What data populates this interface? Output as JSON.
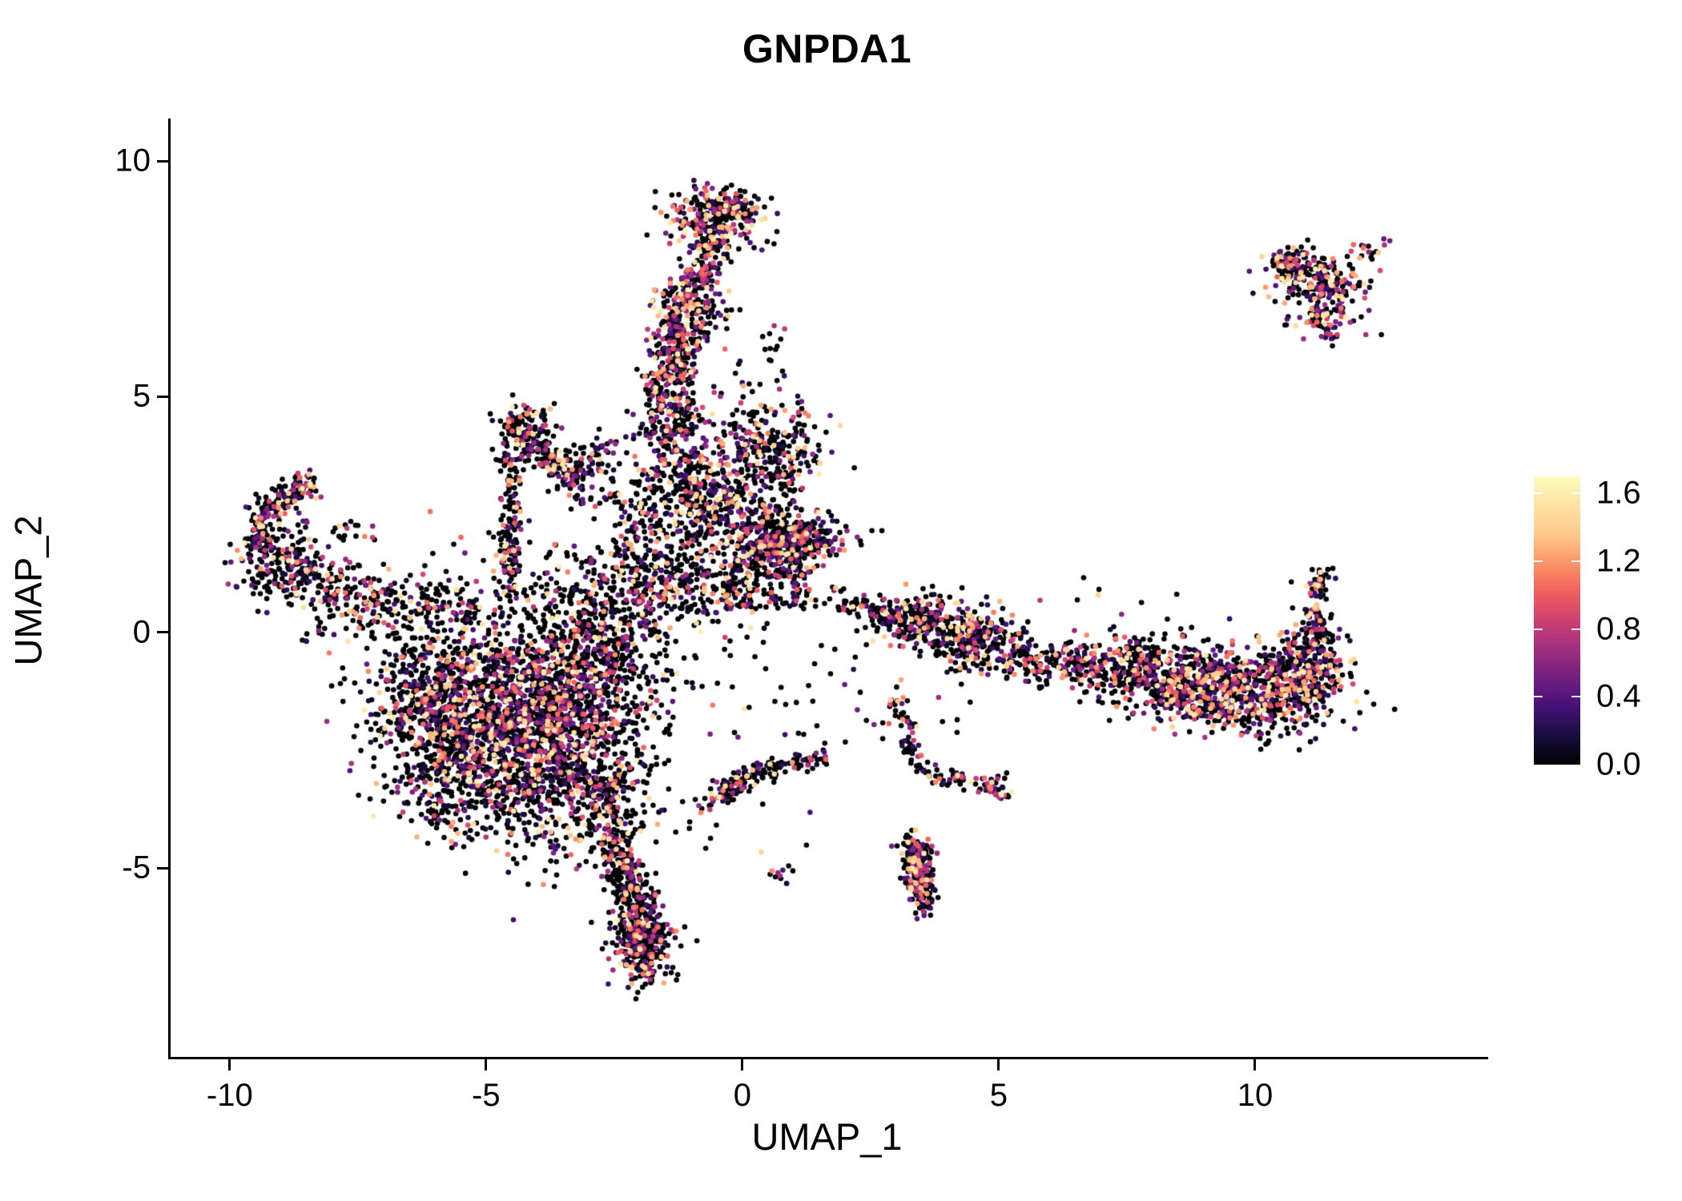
{
  "chart_data": {
    "type": "scatter",
    "title": "GNPDA1",
    "xlabel": "UMAP_1",
    "ylabel": "UMAP_2",
    "xlim": [
      -11.2,
      14.5
    ],
    "ylim": [
      -9.0,
      10.9
    ],
    "grid": false,
    "x_axis": {
      "label": "UMAP_1",
      "ticks": [
        {
          "v": -10,
          "label": "-10"
        },
        {
          "v": -5,
          "label": "-5"
        },
        {
          "v": 0,
          "label": "0"
        },
        {
          "v": 5,
          "label": "5"
        },
        {
          "v": 10,
          "label": "10"
        }
      ]
    },
    "y_axis": {
      "label": "UMAP_2",
      "ticks": [
        {
          "v": -5,
          "label": "-5"
        },
        {
          "v": 0,
          "label": "0"
        },
        {
          "v": 5,
          "label": "5"
        },
        {
          "v": 10,
          "label": "10"
        }
      ]
    },
    "legend": {
      "position": "right",
      "vmax": 1.7,
      "ticks": [
        {
          "v": 1.6,
          "label": "1.6"
        },
        {
          "v": 1.2,
          "label": "1.2"
        },
        {
          "v": 0.8,
          "label": "0.8"
        },
        {
          "v": 0.4,
          "label": "0.4"
        },
        {
          "v": 0.0,
          "label": "0.0"
        }
      ]
    },
    "colormap": [
      {
        "t": 0.0,
        "color": "#000004"
      },
      {
        "t": 0.1,
        "color": "#180f3e"
      },
      {
        "t": 0.2,
        "color": "#451077"
      },
      {
        "t": 0.3,
        "color": "#721f81"
      },
      {
        "t": 0.4,
        "color": "#9f2f7f"
      },
      {
        "t": 0.5,
        "color": "#cd4071"
      },
      {
        "t": 0.6,
        "color": "#f1605d"
      },
      {
        "t": 0.7,
        "color": "#fd9567"
      },
      {
        "t": 0.8,
        "color": "#feca8d"
      },
      {
        "t": 0.9,
        "color": "#fde2a3"
      },
      {
        "t": 1.0,
        "color": "#fcfdbf"
      }
    ],
    "point_radius_px": 3.3,
    "render_seed": 20240613,
    "value_base": 0.12,
    "value_span": 1.5,
    "clusters": [
      {
        "type": "gauss",
        "c": [
          -4.9,
          -1.5
        ],
        "sd": [
          1.05,
          0.95
        ],
        "n": 1150,
        "pos": 0.38
      },
      {
        "type": "gauss",
        "c": [
          -3.7,
          -2.7
        ],
        "sd": [
          0.85,
          0.95
        ],
        "n": 850,
        "pos": 0.38
      },
      {
        "type": "gauss",
        "c": [
          -3.1,
          -0.9
        ],
        "sd": [
          0.75,
          0.8
        ],
        "n": 480,
        "pos": 0.35
      },
      {
        "type": "gauss",
        "c": [
          -5.6,
          -3.0
        ],
        "sd": [
          0.6,
          0.75
        ],
        "n": 320,
        "pos": 0.35
      },
      {
        "type": "gauss",
        "c": [
          -2.9,
          0.2
        ],
        "sd": [
          0.5,
          0.55
        ],
        "n": 170,
        "pos": 0.3
      },
      {
        "type": "gauss",
        "c": [
          -6.3,
          -1.2
        ],
        "sd": [
          0.55,
          0.8
        ],
        "n": 220,
        "pos": 0.35
      },
      {
        "type": "gauss",
        "c": [
          -2.6,
          -3.6
        ],
        "sd": [
          0.4,
          0.5
        ],
        "n": 160,
        "pos": 0.35
      },
      {
        "type": "line",
        "a": [
          -2.55,
          -4.4
        ],
        "b": [
          -2.0,
          -5.9
        ],
        "n": 220,
        "j": 0.18,
        "pos": 0.3
      },
      {
        "type": "gauss",
        "c": [
          -1.95,
          -6.6
        ],
        "sd": [
          0.3,
          0.45
        ],
        "n": 260,
        "pos": 0.35
      },
      {
        "type": "line",
        "a": [
          -2.0,
          -5.9
        ],
        "b": [
          -1.85,
          -7.3
        ],
        "n": 90,
        "j": 0.15,
        "pos": 0.3
      },
      {
        "type": "gauss",
        "c": [
          -0.55,
          8.8
        ],
        "sd": [
          0.5,
          0.32
        ],
        "n": 230,
        "pos": 0.45,
        "heat": 1.35
      },
      {
        "type": "gauss",
        "c": [
          -0.2,
          9.1
        ],
        "sd": [
          0.3,
          0.18
        ],
        "n": 60,
        "pos": 0.45,
        "heat": 1.35
      },
      {
        "type": "line",
        "a": [
          -0.5,
          8.3
        ],
        "b": [
          -0.95,
          7.3
        ],
        "n": 130,
        "j": 0.22,
        "pos": 0.45,
        "heat": 1.35
      },
      {
        "type": "gauss",
        "c": [
          -1.1,
          6.9
        ],
        "sd": [
          0.35,
          0.35
        ],
        "n": 150,
        "pos": 0.45,
        "heat": 1.35
      },
      {
        "type": "line",
        "a": [
          -1.2,
          6.6
        ],
        "b": [
          -1.5,
          5.0
        ],
        "n": 260,
        "j": 0.24,
        "pos": 0.45,
        "heat": 1.35
      },
      {
        "type": "gauss",
        "c": [
          -1.35,
          4.3
        ],
        "sd": [
          0.4,
          0.45
        ],
        "n": 200,
        "pos": 0.4,
        "heat": 1.5
      },
      {
        "type": "gauss",
        "c": [
          -0.95,
          3.15
        ],
        "sd": [
          0.55,
          0.45
        ],
        "n": 210,
        "pos": 0.4,
        "heat": 1.5
      },
      {
        "type": "gauss",
        "c": [
          0.55,
          3.85
        ],
        "sd": [
          0.5,
          0.55
        ],
        "n": 300,
        "pos": 0.4,
        "heat": 1.5
      },
      {
        "type": "gauss",
        "c": [
          0.85,
          1.95
        ],
        "sd": [
          0.55,
          0.28
        ],
        "n": 380,
        "pos": 0.42,
        "heat": 1.5
      },
      {
        "type": "rect",
        "x": [
          -0.4,
          1.3
        ],
        "y": [
          0.5,
          1.7
        ],
        "n": 220,
        "pos": 0.35
      },
      {
        "type": "gauss",
        "c": [
          0.1,
          2.6
        ],
        "sd": [
          0.5,
          0.3
        ],
        "n": 120,
        "pos": 0.38
      },
      {
        "type": "gauss",
        "c": [
          -4.25,
          4.35
        ],
        "sd": [
          0.28,
          0.25
        ],
        "n": 110,
        "pos": 0.42,
        "heat": 1.4
      },
      {
        "type": "line",
        "a": [
          -4.35,
          4.2
        ],
        "b": [
          -3.25,
          3.25
        ],
        "n": 140,
        "j": 0.14,
        "pos": 0.38
      },
      {
        "type": "line",
        "a": [
          -4.5,
          3.9
        ],
        "b": [
          -4.55,
          1.0
        ],
        "n": 150,
        "j": 0.13,
        "pos": 0.35
      },
      {
        "type": "line",
        "a": [
          -3.5,
          3.3
        ],
        "b": [
          -2.7,
          3.9
        ],
        "n": 60,
        "j": 0.18,
        "pos": 0.35
      },
      {
        "type": "rect",
        "x": [
          -3.4,
          -2.4
        ],
        "y": [
          2.6,
          3.6
        ],
        "n": 45,
        "pos": 0.3
      },
      {
        "type": "line",
        "a": [
          -9.45,
          1.7
        ],
        "b": [
          -9.35,
          2.5
        ],
        "n": 70,
        "j": 0.14,
        "pos": 0.4
      },
      {
        "type": "line",
        "a": [
          -9.3,
          2.55
        ],
        "b": [
          -8.35,
          3.25
        ],
        "n": 120,
        "j": 0.16,
        "pos": 0.42,
        "heat": 1.5
      },
      {
        "type": "gauss",
        "c": [
          -8.9,
          1.35
        ],
        "sd": [
          0.45,
          0.4
        ],
        "n": 170,
        "pos": 0.35
      },
      {
        "type": "line",
        "a": [
          -8.4,
          1.0
        ],
        "b": [
          -6.4,
          0.6
        ],
        "n": 150,
        "j": 0.3,
        "pos": 0.32
      },
      {
        "type": "rect",
        "x": [
          -6.3,
          -5.2
        ],
        "y": [
          0.2,
          1.0
        ],
        "n": 60,
        "pos": 0.3
      },
      {
        "type": "gauss",
        "c": [
          -1.5,
          1.1
        ],
        "sd": [
          0.75,
          0.65
        ],
        "n": 420,
        "pos": 0.35
      },
      {
        "type": "rect",
        "x": [
          -2.4,
          -0.4
        ],
        "y": [
          2.0,
          2.8
        ],
        "n": 90,
        "pos": 0.35
      },
      {
        "type": "line",
        "a": [
          1.9,
          0.6
        ],
        "b": [
          3.0,
          0.4
        ],
        "n": 70,
        "j": 0.14,
        "pos": 0.3
      },
      {
        "type": "gauss",
        "c": [
          3.5,
          0.25
        ],
        "sd": [
          0.4,
          0.3
        ],
        "n": 200,
        "pos": 0.4,
        "heat": 1.5
      },
      {
        "type": "gauss",
        "c": [
          4.5,
          -0.15
        ],
        "sd": [
          0.45,
          0.32
        ],
        "n": 230,
        "pos": 0.4,
        "heat": 1.5
      },
      {
        "type": "line",
        "a": [
          5.1,
          -0.45
        ],
        "b": [
          8.0,
          -0.95
        ],
        "n": 330,
        "j": 0.26,
        "pos": 0.38
      },
      {
        "type": "gauss",
        "c": [
          8.9,
          -1.15
        ],
        "sd": [
          0.7,
          0.42
        ],
        "n": 520,
        "pos": 0.45,
        "heat": 1.45
      },
      {
        "type": "gauss",
        "c": [
          10.3,
          -1.3
        ],
        "sd": [
          0.6,
          0.4
        ],
        "n": 380,
        "pos": 0.45,
        "heat": 1.45
      },
      {
        "type": "gauss",
        "c": [
          11.05,
          -0.8
        ],
        "sd": [
          0.4,
          0.45
        ],
        "n": 260,
        "pos": 0.45,
        "heat": 1.45
      },
      {
        "type": "line",
        "a": [
          11.3,
          -0.3
        ],
        "b": [
          11.15,
          0.55
        ],
        "n": 70,
        "j": 0.12,
        "pos": 0.4
      },
      {
        "type": "line",
        "a": [
          11.15,
          0.8
        ],
        "b": [
          11.35,
          1.3
        ],
        "n": 40,
        "j": 0.1,
        "pos": 0.4
      },
      {
        "type": "gauss",
        "c": [
          7.9,
          -0.5
        ],
        "sd": [
          0.5,
          0.3
        ],
        "n": 120,
        "pos": 0.4
      },
      {
        "type": "line",
        "a": [
          -0.65,
          -3.6
        ],
        "b": [
          0.4,
          -2.85
        ],
        "n": 110,
        "j": 0.13,
        "pos": 0.32
      },
      {
        "type": "line",
        "a": [
          0.4,
          -2.85
        ],
        "b": [
          1.6,
          -2.65
        ],
        "n": 60,
        "j": 0.12,
        "pos": 0.3
      },
      {
        "type": "gauss",
        "c": [
          0.72,
          -5.15
        ],
        "sd": [
          0.1,
          0.12
        ],
        "n": 10,
        "pos": 0.5
      },
      {
        "type": "line",
        "a": [
          3.0,
          -1.3
        ],
        "b": [
          3.4,
          -2.9
        ],
        "n": 60,
        "j": 0.13,
        "pos": 0.32
      },
      {
        "type": "line",
        "a": [
          3.5,
          -2.95
        ],
        "b": [
          4.85,
          -3.25
        ],
        "n": 50,
        "j": 0.1,
        "pos": 0.35
      },
      {
        "type": "gauss",
        "c": [
          4.95,
          -3.3
        ],
        "sd": [
          0.13,
          0.13
        ],
        "n": 30,
        "pos": 0.5,
        "heat": 1.3
      },
      {
        "type": "line",
        "a": [
          3.3,
          -4.4
        ],
        "b": [
          3.55,
          -5.85
        ],
        "n": 170,
        "j": 0.13,
        "pos": 0.45,
        "heat": 1.4
      },
      {
        "type": "gauss",
        "c": [
          3.45,
          -5.0
        ],
        "sd": [
          0.16,
          0.3
        ],
        "n": 90,
        "pos": 0.45,
        "heat": 1.4
      },
      {
        "type": "gauss",
        "c": [
          10.9,
          7.7
        ],
        "sd": [
          0.38,
          0.22
        ],
        "n": 100,
        "pos": 0.5,
        "heat": 1.35
      },
      {
        "type": "gauss",
        "c": [
          11.35,
          7.25
        ],
        "sd": [
          0.5,
          0.38
        ],
        "n": 170,
        "pos": 0.5,
        "heat": 1.35
      },
      {
        "type": "line",
        "a": [
          11.2,
          6.85
        ],
        "b": [
          11.5,
          6.25
        ],
        "n": 55,
        "j": 0.12,
        "pos": 0.5,
        "heat": 1.35
      },
      {
        "type": "gauss",
        "c": [
          12.1,
          8.1
        ],
        "sd": [
          0.15,
          0.12
        ],
        "n": 14,
        "pos": 0.5,
        "heat": 1.35
      },
      {
        "type": "gauss",
        "c": [
          12.55,
          8.3
        ],
        "sd": [
          0.05,
          0.05
        ],
        "n": 3,
        "pos": 1.0,
        "heat": 1.2
      },
      {
        "type": "line",
        "a": [
          10.35,
          7.85
        ],
        "b": [
          10.75,
          7.9
        ],
        "n": 25,
        "j": 0.1,
        "pos": 0.45
      },
      {
        "type": "rect",
        "x": [
          -2.6,
          1.6
        ],
        "y": [
          -2.3,
          0.2
        ],
        "n": 55,
        "pos": 0.25
      },
      {
        "type": "rect",
        "x": [
          1.6,
          4.6
        ],
        "y": [
          -2.4,
          0.1
        ],
        "n": 28,
        "pos": 0.25
      },
      {
        "type": "rect",
        "x": [
          5.0,
          11.3
        ],
        "y": [
          0.1,
          1.2
        ],
        "n": 14,
        "pos": 0.3
      },
      {
        "type": "rect",
        "x": [
          -6.2,
          -3.2
        ],
        "y": [
          0.6,
          2.6
        ],
        "n": 40,
        "pos": 0.3
      },
      {
        "type": "rect",
        "x": [
          -2.3,
          0.1
        ],
        "y": [
          2.3,
          3.1
        ],
        "n": 30,
        "pos": 0.35
      },
      {
        "type": "rect",
        "x": [
          -9.6,
          -7.0
        ],
        "y": [
          1.2,
          2.4
        ],
        "n": 50,
        "pos": 0.35
      },
      {
        "type": "rect",
        "x": [
          -8.6,
          -6.6
        ],
        "y": [
          -0.2,
          0.8
        ],
        "n": 45,
        "pos": 0.3
      },
      {
        "type": "gauss",
        "c": [
          0.6,
          6.0
        ],
        "sd": [
          0.15,
          0.3
        ],
        "n": 8,
        "pos": 0.3
      },
      {
        "type": "rect",
        "x": [
          -0.6,
          0.6
        ],
        "y": [
          4.8,
          6.6
        ],
        "n": 12,
        "pos": 0.3
      },
      {
        "type": "rect",
        "x": [
          -1.6,
          1.4
        ],
        "y": [
          -4.9,
          -3.4
        ],
        "n": 14,
        "pos": 0.25
      },
      {
        "type": "rect",
        "x": [
          -4.8,
          -3.3
        ],
        "y": [
          0.1,
          1.1
        ],
        "n": 30,
        "pos": 0.3
      },
      {
        "type": "rect",
        "x": [
          1.3,
          2.0
        ],
        "y": [
          0.3,
          1.0
        ],
        "n": 8,
        "pos": 0.3
      }
    ]
  }
}
